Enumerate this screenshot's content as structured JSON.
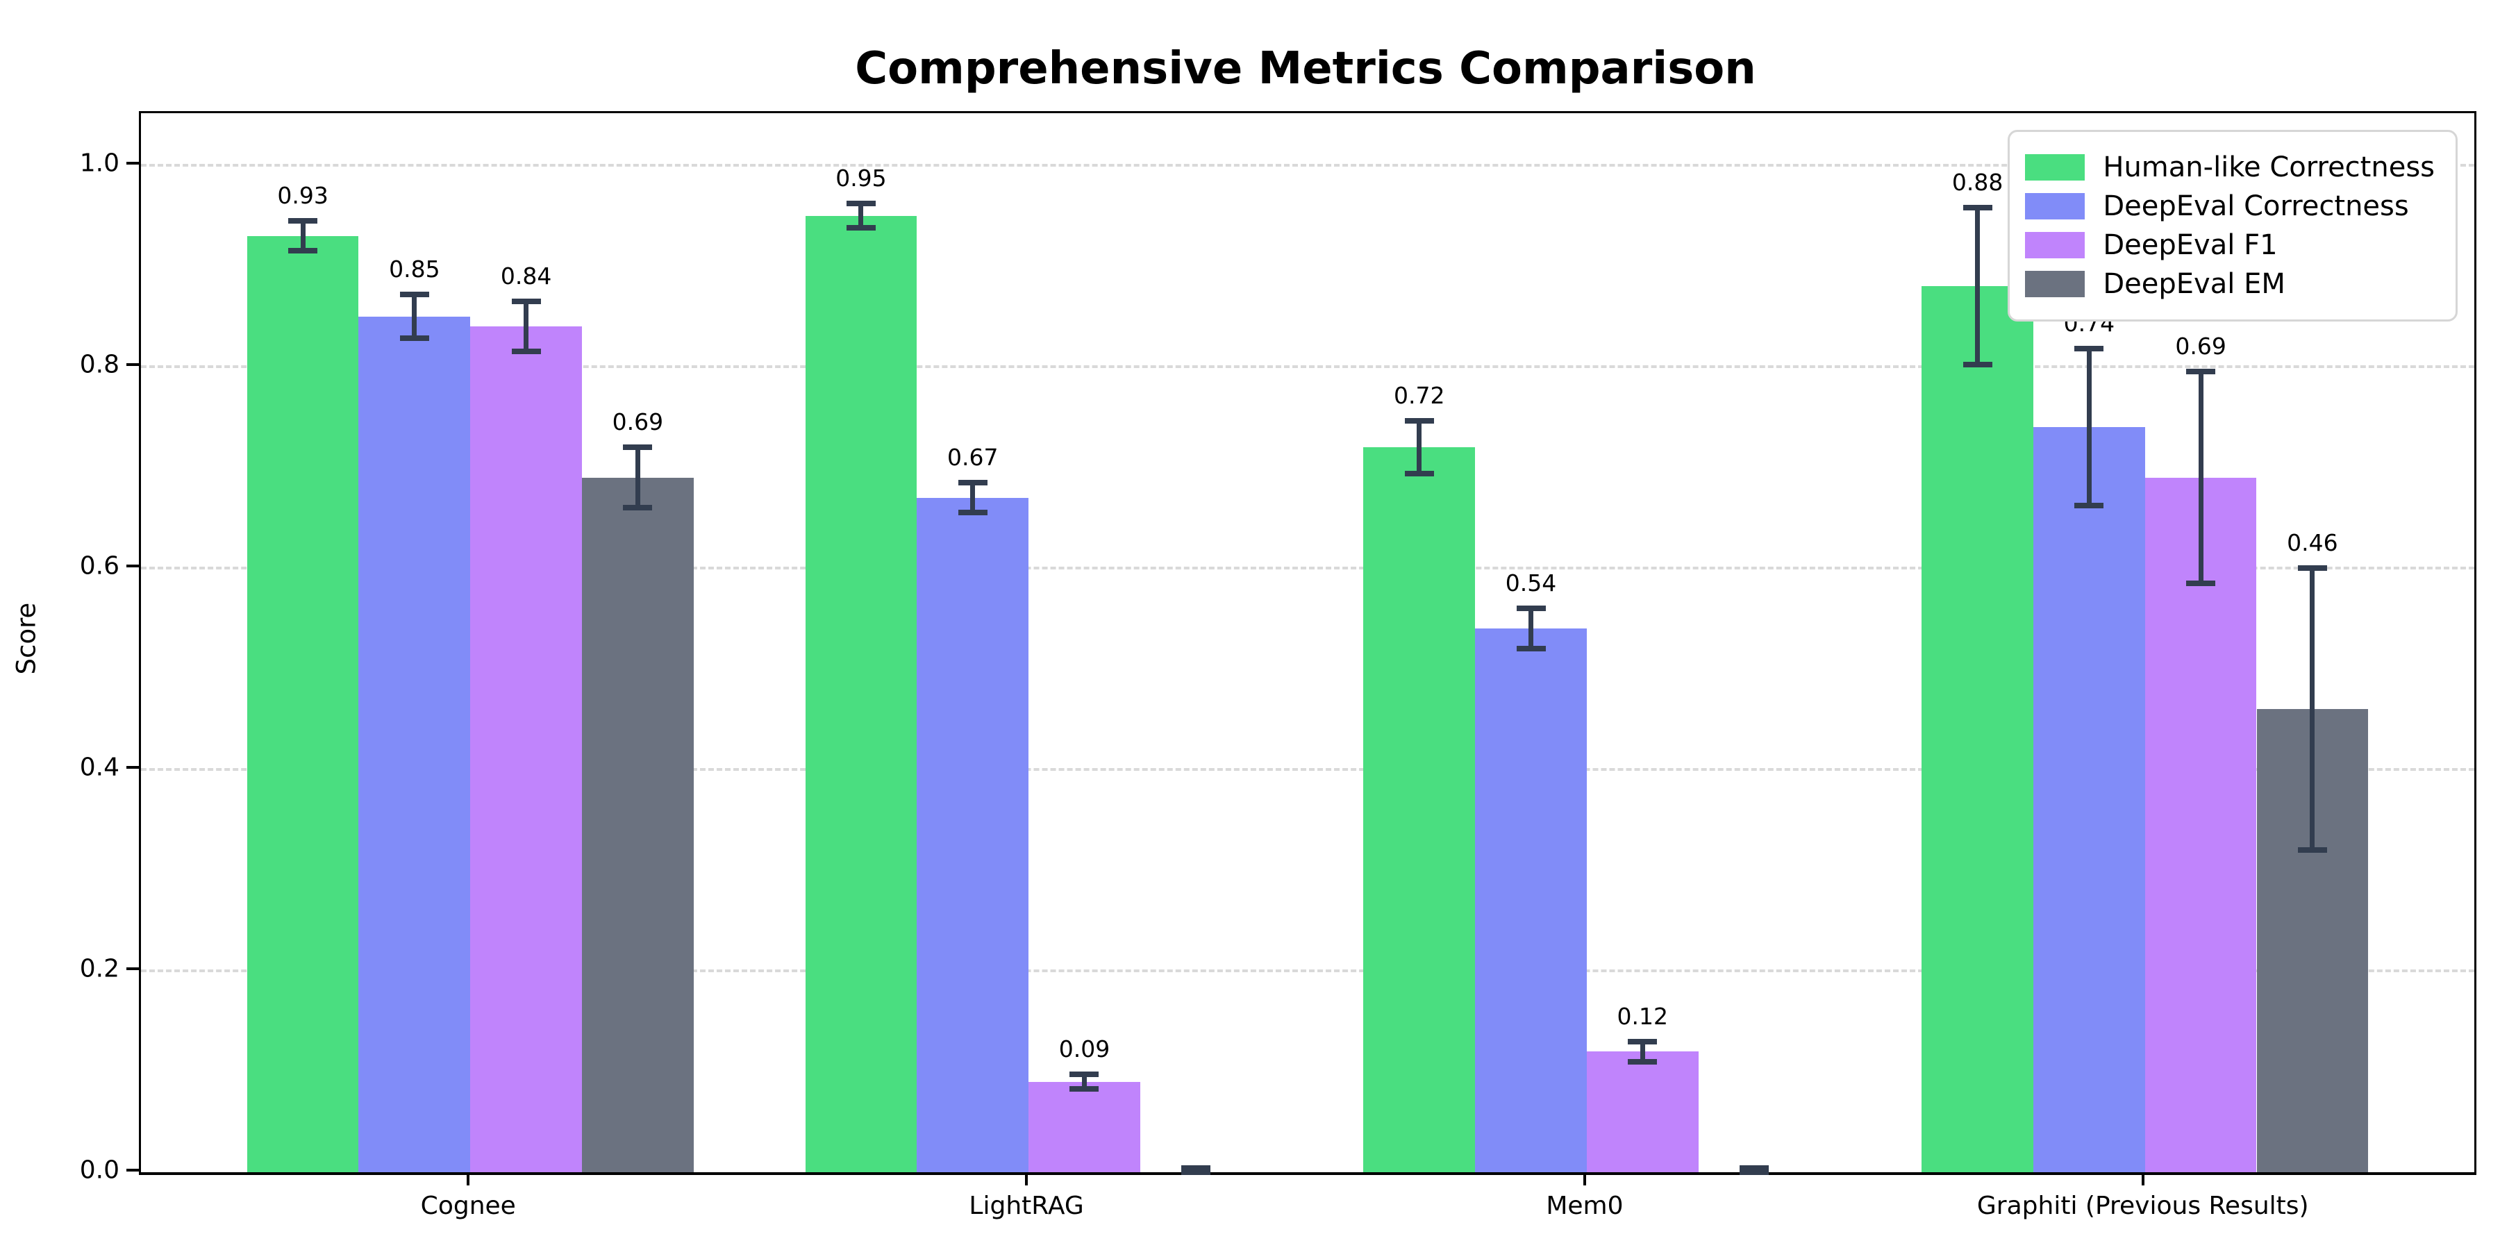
{
  "chart_data": {
    "type": "bar",
    "title": "Comprehensive Metrics Comparison",
    "xlabel": "",
    "ylabel": "Score",
    "categories": [
      "Cognee",
      "LightRAG",
      "Mem0",
      "Graphiti (Previous Results)"
    ],
    "series": [
      {
        "name": "Human-like Correctness",
        "color": "#4ade80",
        "values": [
          0.93,
          0.95,
          0.72,
          0.88
        ],
        "errors": [
          0.015,
          0.012,
          0.026,
          0.078
        ],
        "labels": [
          "0.93",
          "0.95",
          "0.72",
          "0.88"
        ]
      },
      {
        "name": "DeepEval Correctness",
        "color": "#818cf8",
        "values": [
          0.85,
          0.67,
          0.54,
          0.74
        ],
        "errors": [
          0.022,
          0.015,
          0.02,
          0.078
        ],
        "labels": [
          "0.85",
          "0.67",
          "0.54",
          "0.74"
        ]
      },
      {
        "name": "DeepEval F1",
        "color": "#c084fc",
        "values": [
          0.84,
          0.09,
          0.12,
          0.69
        ],
        "errors": [
          0.025,
          0.007,
          0.01,
          0.105
        ],
        "labels": [
          "0.84",
          "0.09",
          "0.12",
          "0.69"
        ]
      },
      {
        "name": "DeepEval EM",
        "color": "#6b7280",
        "values": [
          0.69,
          0.0,
          0.0,
          0.46
        ],
        "errors": [
          0.03,
          0.004,
          0.004,
          0.14
        ],
        "labels": [
          "0.69",
          null,
          null,
          "0.46"
        ]
      }
    ],
    "ylim": [
      0.0,
      1.052
    ],
    "yticks": {
      "values": [
        0.0,
        0.2,
        0.4,
        0.6,
        0.8,
        1.0
      ],
      "labels": [
        "0.0",
        "0.2",
        "0.4",
        "0.6",
        "0.8",
        "1.0"
      ]
    },
    "grid": "horizontal-dashed",
    "gridline_color": "#d9d9d9",
    "error_bar_color": "#323d4f",
    "axis_color": "#000000",
    "background_color": "#ffffff",
    "legend_position": "upper right"
  }
}
